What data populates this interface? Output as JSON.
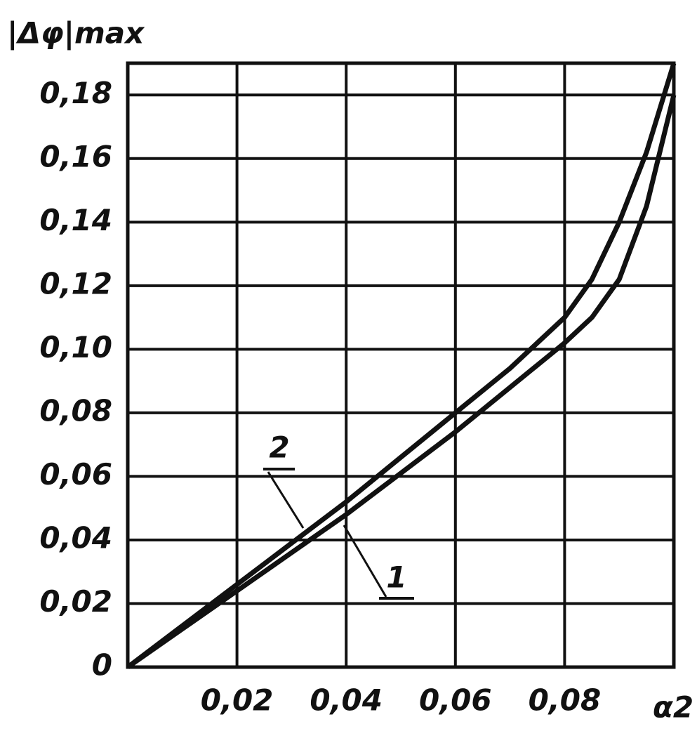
{
  "chart_data": {
    "type": "line",
    "y_label": "|Δφ|max",
    "x_label": "α2",
    "x": [
      0,
      0.01,
      0.02,
      0.03,
      0.04,
      0.05,
      0.06,
      0.07,
      0.08,
      0.085,
      0.09,
      0.095,
      0.1
    ],
    "series": [
      {
        "name": "1",
        "color": "#111111",
        "values": [
          0,
          0.012,
          0.024,
          0.036,
          0.048,
          0.061,
          0.074,
          0.088,
          0.102,
          0.11,
          0.122,
          0.145,
          0.18
        ]
      },
      {
        "name": "2",
        "color": "#111111",
        "values": [
          0,
          0.013,
          0.026,
          0.039,
          0.052,
          0.066,
          0.08,
          0.094,
          0.11,
          0.122,
          0.14,
          0.162,
          0.19
        ]
      }
    ],
    "xlim": [
      0,
      0.1
    ],
    "ylim": [
      0,
      0.19
    ],
    "xticks": [
      {
        "value": 0.02,
        "label": "0,02"
      },
      {
        "value": 0.04,
        "label": "0,04"
      },
      {
        "value": 0.06,
        "label": "0,06"
      },
      {
        "value": 0.08,
        "label": "0,08"
      }
    ],
    "yticks": [
      0,
      {
        "value": 0.02,
        "label": "0,02"
      },
      {
        "value": 0.04,
        "label": "0,04"
      },
      {
        "value": 0.06,
        "label": "0,06"
      },
      {
        "value": 0.08,
        "label": "0,08"
      },
      {
        "value": 0.1,
        "label": "0,10"
      },
      {
        "value": 0.12,
        "label": "0,12"
      },
      {
        "value": 0.14,
        "label": "0,14"
      },
      {
        "value": 0.16,
        "label": "0,16"
      },
      {
        "value": 0.18,
        "label": "0,18"
      }
    ],
    "grid": true
  }
}
